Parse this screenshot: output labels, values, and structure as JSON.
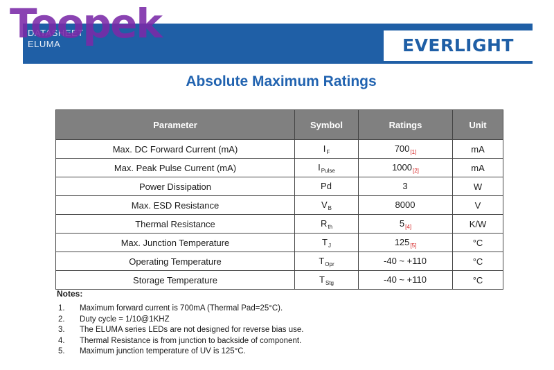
{
  "header": {
    "doc_type": "DATASHEET",
    "series": "ELUMA",
    "logo": "EVERLIGHT",
    "watermark": "Toopek"
  },
  "colors": {
    "banner": "#1f5fa6",
    "heading": "#2163b0",
    "table_header_bg": "#808080",
    "reference_mark": "#d42020",
    "watermark": "#7b2aa8"
  },
  "title": "Absolute Maximum Ratings",
  "table": {
    "headers": [
      "Parameter",
      "Symbol",
      "Ratings",
      "Unit"
    ],
    "rows": [
      {
        "parameter": "Max. DC Forward Current (mA)",
        "symbol": "I",
        "symbol_sub": "F",
        "rating": "700",
        "ref": "[1]",
        "unit": "mA"
      },
      {
        "parameter": "Max. Peak Pulse Current (mA)",
        "symbol": "I",
        "symbol_sub": "Pulse",
        "rating": "1000",
        "ref": "[2]",
        "unit": "mA"
      },
      {
        "parameter": "Power Dissipation",
        "symbol": "Pd",
        "symbol_sub": "",
        "rating": "3",
        "ref": "",
        "unit": "W"
      },
      {
        "parameter": "Max. ESD Resistance",
        "symbol": "V",
        "symbol_sub": "B",
        "rating": "8000",
        "ref": "",
        "unit": "V"
      },
      {
        "parameter": "Thermal Resistance",
        "symbol": "R",
        "symbol_sub": "th",
        "rating": "5",
        "ref": "[4]",
        "unit": "K/W"
      },
      {
        "parameter": "Max. Junction Temperature",
        "symbol": "T",
        "symbol_sub": "J",
        "rating": "125",
        "ref": "[5]",
        "unit": "°C"
      },
      {
        "parameter": "Operating Temperature",
        "symbol": "T",
        "symbol_sub": "Opr",
        "rating": "-40 ~ +110",
        "ref": "",
        "unit": "°C"
      },
      {
        "parameter": "Storage Temperature",
        "symbol": "T",
        "symbol_sub": "Stg",
        "rating": "-40 ~ +110",
        "ref": "",
        "unit": "°C"
      }
    ]
  },
  "notes": {
    "title": "Notes:",
    "items": [
      {
        "num": "1.",
        "text": "Maximum forward current is 700mA (Thermal Pad=25°C)."
      },
      {
        "num": "2.",
        "text": "Duty cycle = 1/10@1KHZ"
      },
      {
        "num": "3.",
        "text": "The ELUMA series LEDs are not designed for reverse bias use."
      },
      {
        "num": "4.",
        "text": "Thermal Resistance is from junction to backside of component."
      },
      {
        "num": "5.",
        "text": "Maximum junction temperature of UV is 125°C."
      }
    ]
  }
}
